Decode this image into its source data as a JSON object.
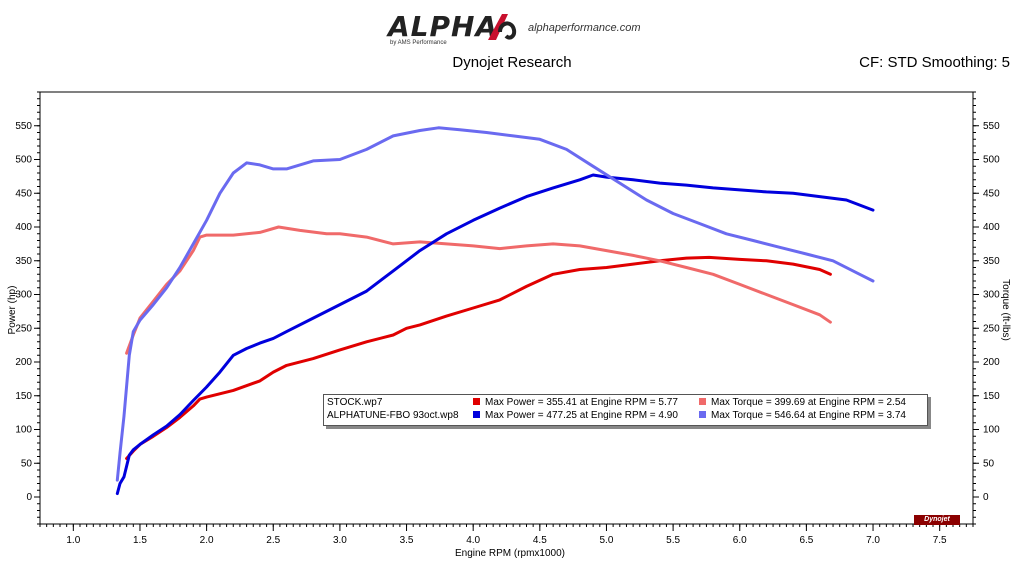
{
  "header": {
    "logo_text": "ALPHA",
    "logo_sub": "by AMS Performance",
    "logo_url": "alphaperformance.com",
    "title": "Dynojet Research",
    "cf": "CF: STD Smoothing: 5"
  },
  "badge": "Dynojet",
  "legend": {
    "rows": [
      {
        "name": "STOCK.wp7",
        "power": "Max Power = 355.41 at Engine RPM = 5.77",
        "torque": "Max Torque = 399.69 at Engine RPM = 2.54",
        "power_color": "#e00000",
        "torque_color": "#f06a6a"
      },
      {
        "name": "ALPHATUNE-FBO 93oct.wp8",
        "power": "Max Power = 477.25 at Engine RPM = 4.90",
        "torque": "Max Torque = 546.64 at Engine RPM = 3.74",
        "power_color": "#0000dd",
        "torque_color": "#6a6af0"
      }
    ]
  },
  "chart_data": {
    "type": "line",
    "xlabel": "Engine RPM (rpmx1000)",
    "ylabel": "Power (hp)",
    "y2label": "Torque (ft-lbs)",
    "xlim": [
      0.75,
      7.75
    ],
    "ylim": [
      -40,
      600
    ],
    "xticks": [
      "1.0",
      "1.5",
      "2.0",
      "2.5",
      "3.0",
      "3.5",
      "4.0",
      "4.5",
      "5.0",
      "5.5",
      "6.0",
      "6.5",
      "7.0",
      "7.5"
    ],
    "yticks": [
      "0",
      "50",
      "100",
      "150",
      "200",
      "250",
      "300",
      "350",
      "400",
      "450",
      "500",
      "550"
    ],
    "grid": false,
    "series": [
      {
        "name": "STOCK.wp7",
        "kind": "power",
        "color": "#e00000",
        "x": [
          1.4,
          1.45,
          1.5,
          1.6,
          1.7,
          1.8,
          1.9,
          1.95,
          2.0,
          2.2,
          2.4,
          2.5,
          2.6,
          2.8,
          3.0,
          3.2,
          3.4,
          3.5,
          3.6,
          3.8,
          4.0,
          4.2,
          4.4,
          4.6,
          4.8,
          5.0,
          5.2,
          5.4,
          5.6,
          5.77,
          6.0,
          6.2,
          6.4,
          6.6,
          6.68
        ],
        "y": [
          57,
          68,
          78,
          90,
          103,
          118,
          135,
          145,
          148,
          158,
          172,
          185,
          195,
          205,
          218,
          230,
          240,
          250,
          255,
          268,
          280,
          292,
          312,
          330,
          337,
          340,
          345,
          350,
          354,
          355,
          352,
          350,
          345,
          337,
          330
        ]
      },
      {
        "name": "STOCK.wp7",
        "kind": "torque",
        "color": "#f06a6a",
        "x": [
          1.4,
          1.45,
          1.5,
          1.6,
          1.7,
          1.8,
          1.9,
          1.95,
          2.0,
          2.2,
          2.4,
          2.54,
          2.7,
          2.9,
          3.0,
          3.2,
          3.4,
          3.6,
          3.8,
          4.0,
          4.2,
          4.4,
          4.6,
          4.8,
          5.0,
          5.2,
          5.4,
          5.6,
          5.8,
          6.0,
          6.2,
          6.4,
          6.6,
          6.68
        ],
        "y": [
          213,
          240,
          265,
          290,
          315,
          335,
          365,
          385,
          388,
          388,
          392,
          400,
          395,
          390,
          390,
          385,
          375,
          378,
          375,
          372,
          368,
          372,
          375,
          372,
          365,
          358,
          350,
          340,
          330,
          315,
          300,
          285,
          270,
          259
        ]
      },
      {
        "name": "ALPHATUNE-FBO 93oct.wp8",
        "kind": "power",
        "color": "#0000dd",
        "x": [
          1.33,
          1.35,
          1.38,
          1.42,
          1.45,
          1.5,
          1.6,
          1.7,
          1.8,
          1.9,
          2.0,
          2.1,
          2.2,
          2.3,
          2.4,
          2.5,
          2.6,
          2.8,
          3.0,
          3.2,
          3.4,
          3.6,
          3.8,
          4.0,
          4.2,
          4.4,
          4.6,
          4.8,
          4.9,
          5.0,
          5.2,
          5.4,
          5.6,
          5.8,
          6.0,
          6.2,
          6.4,
          6.6,
          6.8,
          7.0
        ],
        "y": [
          5,
          20,
          30,
          62,
          70,
          78,
          92,
          105,
          122,
          143,
          163,
          185,
          210,
          220,
          228,
          235,
          245,
          265,
          285,
          305,
          335,
          365,
          390,
          410,
          428,
          445,
          458,
          470,
          477,
          474,
          470,
          465,
          462,
          458,
          455,
          452,
          450,
          445,
          440,
          425
        ]
      },
      {
        "name": "ALPHATUNE-FBO 93oct.wp8",
        "kind": "torque",
        "color": "#6a6af0",
        "x": [
          1.33,
          1.35,
          1.38,
          1.42,
          1.45,
          1.5,
          1.6,
          1.7,
          1.8,
          1.9,
          2.0,
          2.1,
          2.2,
          2.3,
          2.4,
          2.5,
          2.6,
          2.8,
          3.0,
          3.2,
          3.4,
          3.6,
          3.74,
          3.9,
          4.1,
          4.3,
          4.5,
          4.7,
          4.9,
          5.1,
          5.3,
          5.5,
          5.7,
          5.9,
          6.1,
          6.3,
          6.5,
          6.7,
          6.9,
          7.0
        ],
        "y": [
          25,
          65,
          120,
          210,
          245,
          262,
          285,
          310,
          340,
          375,
          410,
          450,
          480,
          495,
          492,
          486,
          486,
          498,
          500,
          515,
          535,
          543,
          547,
          544,
          540,
          535,
          530,
          515,
          490,
          465,
          440,
          420,
          405,
          390,
          380,
          370,
          360,
          350,
          330,
          320
        ]
      }
    ]
  }
}
